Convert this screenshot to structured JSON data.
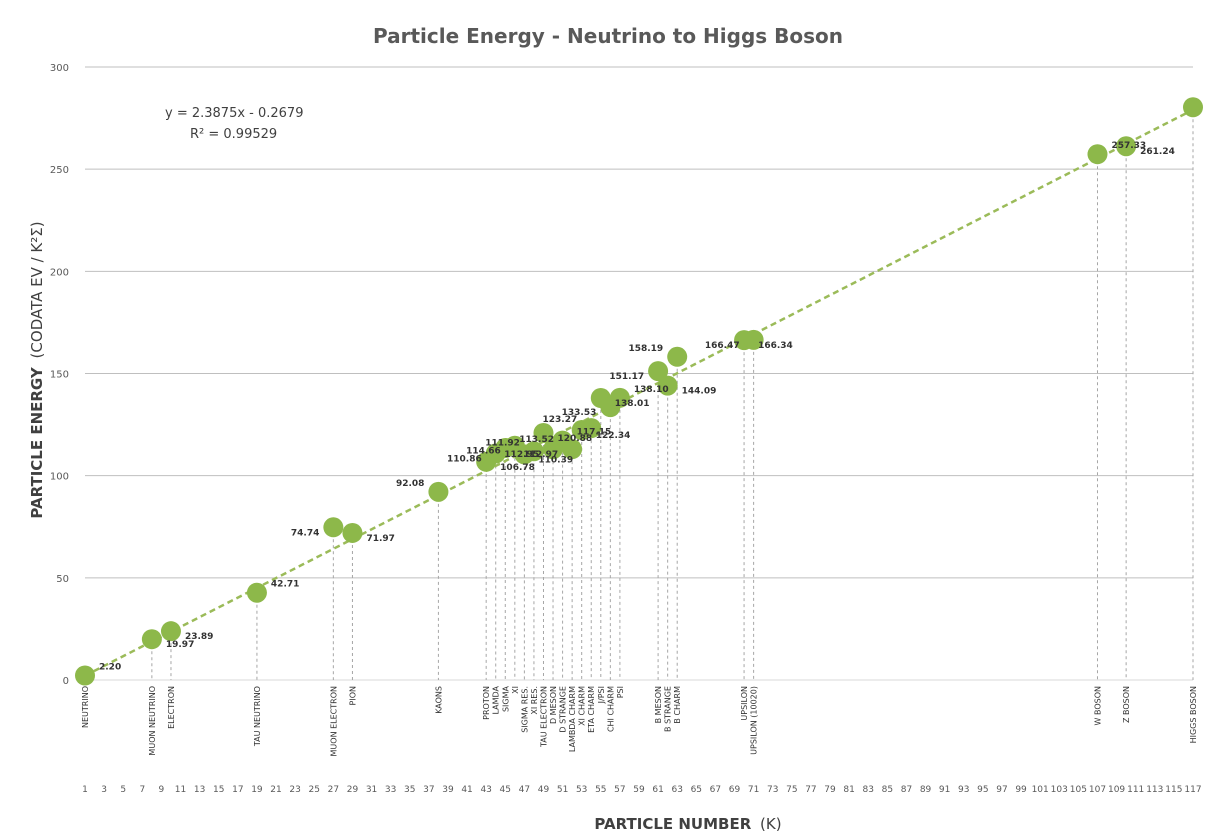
{
  "chart_data": {
    "type": "scatter",
    "title": "Particle Energy - Neutrino to Higgs Boson",
    "xlabel": "PARTICLE NUMBER",
    "xlabel_unit": "(K)",
    "ylabel": "PARTICLE ENERGY",
    "ylabel_unit": "(CODATA EV / K²Σ)",
    "ylim": [
      0,
      300
    ],
    "yticks": [
      0,
      50,
      100,
      150,
      200,
      250,
      300
    ],
    "xlim": [
      1,
      117
    ],
    "xticks": [
      "1",
      "3",
      "5",
      "7",
      "9",
      "11",
      "13",
      "15",
      "17",
      "19",
      "21",
      "23",
      "25",
      "27",
      "29",
      "31",
      "33",
      "35",
      "37",
      "39",
      "41",
      "43",
      "45",
      "47",
      "49",
      "51",
      "53",
      "55",
      "57",
      "59",
      "61",
      "63",
      "65",
      "67",
      "69",
      "71",
      "73",
      "75",
      "77",
      "79",
      "81",
      "83",
      "85",
      "87",
      "89",
      "91",
      "93",
      "95",
      "97",
      "99",
      "101",
      "103",
      "105",
      "107",
      "109",
      "111",
      "113",
      "115",
      "117"
    ],
    "grid": "horizontal",
    "colors": {
      "marker": "#8DB84A",
      "trendline": "#9BBB59",
      "gridline": "#BFBFBF",
      "dropline": "#A6A6A6"
    },
    "trendline": {
      "type": "linear",
      "equation": "y = 2.3875x - 0.2679",
      "r_squared": "R² = 0.99529"
    },
    "points": [
      {
        "x": 1,
        "y": 2.2,
        "label": "2.20",
        "category": "NEUTRINO"
      },
      {
        "x": 8,
        "y": 19.97,
        "label": "19.97",
        "category": "MUON NEUTRINO"
      },
      {
        "x": 10,
        "y": 23.89,
        "label": "23.89",
        "category": "ELECTRON"
      },
      {
        "x": 19,
        "y": 42.71,
        "label": "42.71",
        "category": "TAU NEUTRINO"
      },
      {
        "x": 27,
        "y": 74.74,
        "label": "74.74",
        "category": "MUON ELECTRON"
      },
      {
        "x": 29,
        "y": 71.97,
        "label": "71.97",
        "category": "PION"
      },
      {
        "x": 38,
        "y": 92.08,
        "label": "92.08",
        "category": "KAONS"
      },
      {
        "x": 43,
        "y": 106.78,
        "label": "106.78",
        "category": "PROTON"
      },
      {
        "x": 44,
        "y": 110.86,
        "label": "110.86",
        "category": "LAMDA"
      },
      {
        "x": 45,
        "y": 113.52,
        "label": "113.52",
        "category": "SIGMA"
      },
      {
        "x": 46,
        "y": 114.66,
        "label": "114.66",
        "category": "XI"
      },
      {
        "x": 47,
        "y": 110.39,
        "label": "110.39",
        "category": "SIGMA RES."
      },
      {
        "x": 48,
        "y": 111.92,
        "label": "111.92",
        "category": "XI RES."
      },
      {
        "x": 49,
        "y": 120.88,
        "label": "120.88",
        "category": "TAU ELECTRON"
      },
      {
        "x": 50,
        "y": 112.95,
        "label": "112.95",
        "category": "D MESON"
      },
      {
        "x": 51,
        "y": 117.15,
        "label": "117.15",
        "category": "D STRANGE"
      },
      {
        "x": 52,
        "y": 112.97,
        "label": "112.97",
        "category": "LAMBDA CHARM"
      },
      {
        "x": 53,
        "y": 122.34,
        "label": "122.34",
        "category": "XI CHARM"
      },
      {
        "x": 54,
        "y": 123.27,
        "label": "123.27",
        "category": "ETA CHARM"
      },
      {
        "x": 55,
        "y": 138.01,
        "label": "138.01",
        "category": "J/PSI"
      },
      {
        "x": 56,
        "y": 133.53,
        "label": "133.53",
        "category": "CHI CHARM"
      },
      {
        "x": 57,
        "y": 138.1,
        "label": "138.10",
        "category": "PSI"
      },
      {
        "x": 61,
        "y": 151.17,
        "label": "151.17",
        "category": "B MESON"
      },
      {
        "x": 62,
        "y": 144.09,
        "label": "144.09",
        "category": "B STRANGE"
      },
      {
        "x": 63,
        "y": 158.19,
        "label": "158.19",
        "category": "B CHARM"
      },
      {
        "x": 70,
        "y": 166.34,
        "label": "166.34",
        "category": "UPSILON"
      },
      {
        "x": 71,
        "y": 166.47,
        "label": "166.47",
        "category": "UPSILON (10020)"
      },
      {
        "x": 107,
        "y": 257.33,
        "label": "257.33",
        "category": "W BOSON"
      },
      {
        "x": 110,
        "y": 261.24,
        "label": "261.24",
        "category": "Z BOSON"
      },
      {
        "x": 117,
        "y": 280.3,
        "label": "280.30",
        "category": "HIGGS BOSON"
      }
    ]
  }
}
